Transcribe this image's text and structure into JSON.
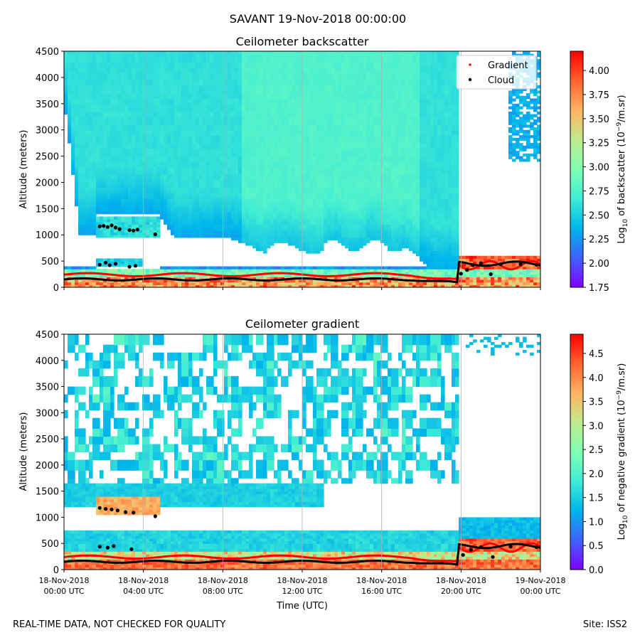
{
  "suptitle": "SAVANT 19-Nov-2018 00:00:00",
  "footer_left": "REAL-TIME DATA, NOT CHECKED FOR QUALITY",
  "footer_right": "Site: ISS2",
  "xlabel": "Time (UTC)",
  "x_ticks": [
    {
      "line1": "18-Nov-2018",
      "line2": "00:00 UTC",
      "hour": 0
    },
    {
      "line1": "18-Nov-2018",
      "line2": "04:00 UTC",
      "hour": 4
    },
    {
      "line1": "18-Nov-2018",
      "line2": "08:00 UTC",
      "hour": 8
    },
    {
      "line1": "18-Nov-2018",
      "line2": "12:00 UTC",
      "hour": 12
    },
    {
      "line1": "18-Nov-2018",
      "line2": "16:00 UTC",
      "hour": 16
    },
    {
      "line1": "18-Nov-2018",
      "line2": "20:00 UTC",
      "hour": 20
    },
    {
      "line1": "19-Nov-2018",
      "line2": "00:00 UTC",
      "hour": 24
    }
  ],
  "colors": {
    "cmap": [
      "#8000ff",
      "#4062fa",
      "#00b5eb",
      "#40ecd4",
      "#80ffb4",
      "#c0eb8d",
      "#ffb462",
      "#ff6232",
      "#ff0000"
    ],
    "gradient_marker": "#ff0000",
    "cloud_marker": "#000000",
    "grid": "#b0b0b0"
  },
  "chart_data": [
    {
      "type": "heatmap",
      "title": "Ceilometer backscatter",
      "ylabel": "Altitude (meters)",
      "xlim_hours": [
        0,
        24
      ],
      "ylim": [
        0,
        4500
      ],
      "y_ticks": [
        0,
        500,
        1000,
        1500,
        2000,
        2500,
        3000,
        3500,
        4000,
        4500
      ],
      "grid": "vertical",
      "colorbar": {
        "label": "Log10 of backscatter (10^-9/m.sr)",
        "label_main": "Log",
        "label_sub": "10",
        "label_rest": " of backscatter (10",
        "label_sup": "−9",
        "label_end": "/m.sr)",
        "range": [
          1.75,
          4.2
        ],
        "ticks": [
          "1.75",
          "2.00",
          "2.25",
          "2.50",
          "2.75",
          "3.00",
          "3.25",
          "3.50",
          "3.75",
          "4.00"
        ]
      },
      "legend": {
        "placement": "top-right",
        "entries": [
          "Gradient",
          "Cloud"
        ]
      },
      "cloud_points": [
        {
          "t": 1.8,
          "z": 1160
        },
        {
          "t": 2.0,
          "z": 1170
        },
        {
          "t": 2.2,
          "z": 1150
        },
        {
          "t": 2.4,
          "z": 1180
        },
        {
          "t": 2.6,
          "z": 1140
        },
        {
          "t": 2.8,
          "z": 1110
        },
        {
          "t": 3.3,
          "z": 1090
        },
        {
          "t": 3.5,
          "z": 1080
        },
        {
          "t": 3.7,
          "z": 1100
        },
        {
          "t": 4.6,
          "z": 1010
        },
        {
          "t": 1.8,
          "z": 430
        },
        {
          "t": 2.1,
          "z": 470
        },
        {
          "t": 2.3,
          "z": 420
        },
        {
          "t": 2.6,
          "z": 450
        },
        {
          "t": 3.3,
          "z": 390
        },
        {
          "t": 3.6,
          "z": 410
        },
        {
          "t": 20.0,
          "z": 260
        },
        {
          "t": 20.3,
          "z": 330
        },
        {
          "t": 20.6,
          "z": 420
        },
        {
          "t": 21.0,
          "z": 460
        },
        {
          "t": 21.5,
          "z": 250
        },
        {
          "t": 22.0,
          "z": 440
        },
        {
          "t": 23.0,
          "z": 440
        },
        {
          "t": 23.8,
          "z": 430
        }
      ]
    },
    {
      "type": "heatmap",
      "title": "Ceilometer gradient",
      "ylabel": "Altitude (meters)",
      "xlim_hours": [
        0,
        24
      ],
      "ylim": [
        0,
        4500
      ],
      "y_ticks": [
        0,
        500,
        1000,
        1500,
        2000,
        2500,
        3000,
        3500,
        4000,
        4500
      ],
      "grid": "vertical",
      "colorbar": {
        "label": "Log10 of negative gradient (10^-9/m.sr)",
        "label_main": "Log",
        "label_sub": "10",
        "label_rest": " of negative gradient (10",
        "label_sup": "−9",
        "label_end": "/m.sr)",
        "range": [
          0.0,
          4.9
        ],
        "ticks": [
          "0.0",
          "0.5",
          "1.0",
          "1.5",
          "2.0",
          "2.5",
          "3.0",
          "3.5",
          "4.0",
          "4.5"
        ]
      },
      "cloud_points": [
        {
          "t": 1.8,
          "z": 1180
        },
        {
          "t": 2.1,
          "z": 1160
        },
        {
          "t": 2.4,
          "z": 1150
        },
        {
          "t": 2.7,
          "z": 1130
        },
        {
          "t": 3.1,
          "z": 1100
        },
        {
          "t": 3.5,
          "z": 1090
        },
        {
          "t": 4.6,
          "z": 1020
        },
        {
          "t": 1.8,
          "z": 440
        },
        {
          "t": 2.2,
          "z": 420
        },
        {
          "t": 2.5,
          "z": 450
        },
        {
          "t": 3.4,
          "z": 390
        },
        {
          "t": 20.1,
          "z": 280
        },
        {
          "t": 20.5,
          "z": 380
        },
        {
          "t": 21.0,
          "z": 430
        },
        {
          "t": 21.6,
          "z": 240
        },
        {
          "t": 22.5,
          "z": 440
        },
        {
          "t": 23.8,
          "z": 430
        }
      ]
    }
  ]
}
